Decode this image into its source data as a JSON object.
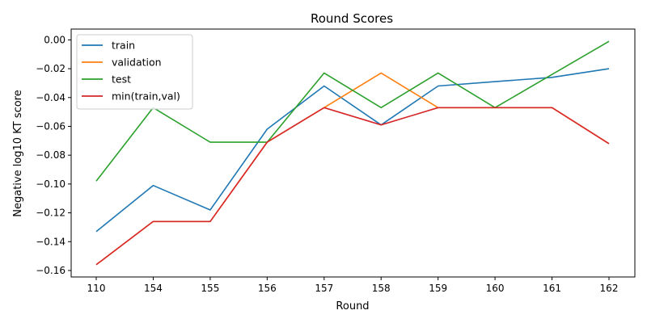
{
  "chart_data": {
    "type": "line",
    "title": "Round Scores",
    "xlabel": "Round",
    "ylabel": "Negative log10 KT score",
    "categories": [
      "110",
      "154",
      "155",
      "156",
      "157",
      "158",
      "159",
      "160",
      "161",
      "162"
    ],
    "ylim": [
      -0.1645,
      0.0075
    ],
    "yticks": [
      -0.16,
      -0.14,
      -0.12,
      -0.1,
      -0.08,
      -0.06,
      -0.04,
      -0.02,
      0.0
    ],
    "ytick_labels": [
      "−0.16",
      "−0.14",
      "−0.12",
      "−0.10",
      "−0.08",
      "−0.06",
      "−0.04",
      "−0.02",
      "0.00"
    ],
    "grid": false,
    "legend_position": "top-left",
    "series": [
      {
        "name": "train",
        "color": "#1f77b4",
        "values": [
          -0.133,
          -0.101,
          -0.118,
          -0.062,
          -0.032,
          -0.059,
          -0.032,
          -0.029,
          -0.026,
          -0.02
        ]
      },
      {
        "name": "validation",
        "color": "#ff7f0e",
        "values": [
          -0.156,
          -0.126,
          -0.126,
          -0.071,
          -0.047,
          -0.023,
          -0.047,
          -0.047,
          -0.047,
          -0.072
        ]
      },
      {
        "name": "test",
        "color": "#2ca02c",
        "values": [
          -0.098,
          -0.047,
          -0.071,
          -0.071,
          -0.023,
          -0.047,
          -0.023,
          -0.047,
          -0.024,
          -0.001
        ]
      },
      {
        "name": "min(train,val)",
        "color": "#d62728",
        "values": [
          -0.156,
          -0.126,
          -0.126,
          -0.071,
          -0.047,
          -0.059,
          -0.047,
          -0.047,
          -0.047,
          -0.072
        ]
      }
    ]
  }
}
